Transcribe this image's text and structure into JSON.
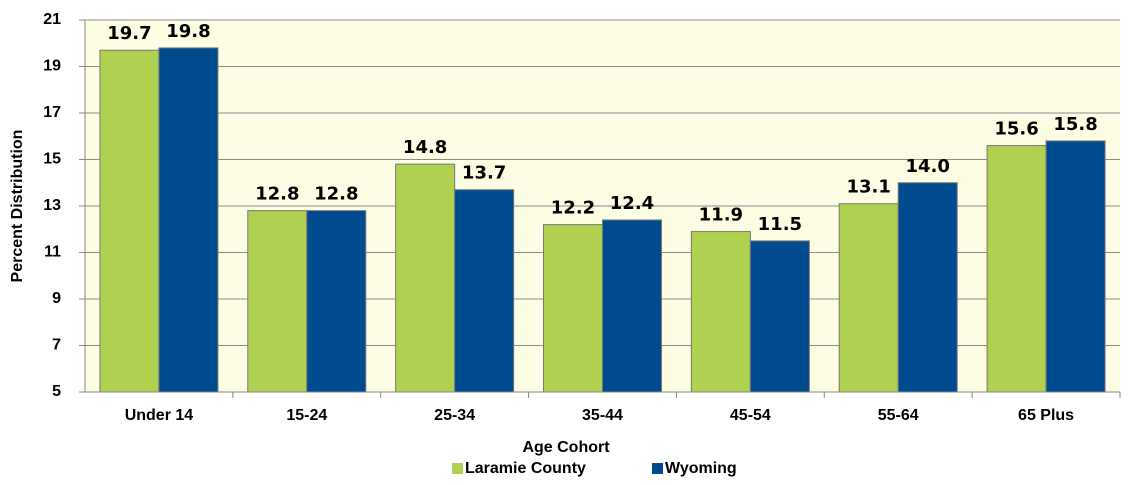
{
  "chart_data": {
    "type": "bar",
    "x_label": "Age Cohort",
    "y_label": "Percent Distribution",
    "categories": [
      "Under 14",
      "15-24",
      "25-34",
      "35-44",
      "45-54",
      "55-64",
      "65 Plus"
    ],
    "series": [
      {
        "name": "Laramie County",
        "color": "#b0d14f",
        "values": [
          19.7,
          12.8,
          14.8,
          12.2,
          11.9,
          13.1,
          15.6
        ],
        "value_labels": [
          "19.7",
          "12.8",
          "14.8",
          "12.2",
          "11.9",
          "13.1",
          "15.6"
        ]
      },
      {
        "name": "Wyoming",
        "color": "#004a8f",
        "values": [
          19.8,
          12.8,
          13.7,
          12.4,
          11.5,
          14.0,
          15.8
        ],
        "value_labels": [
          "19.8",
          "12.8",
          "13.7",
          "12.4",
          "11.5",
          "14.0",
          "15.8"
        ]
      }
    ],
    "ylim": [
      5,
      21
    ],
    "yticks": [
      5,
      7,
      9,
      11,
      13,
      15,
      17,
      19,
      21
    ],
    "grid": true,
    "legend": "bottom"
  }
}
